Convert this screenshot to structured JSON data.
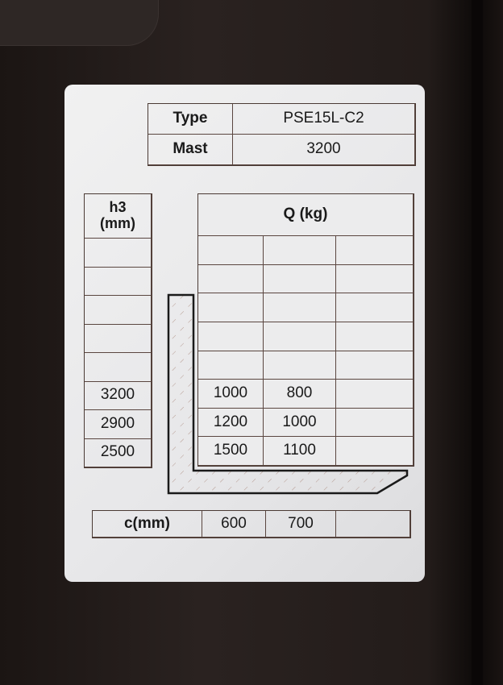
{
  "spec": {
    "type_label": "Type",
    "type_value": "PSE15L-C2",
    "mast_label": "Mast",
    "mast_value": "3200"
  },
  "h3": {
    "header_line1": "h3",
    "header_line2": "(mm)",
    "rows": [
      "",
      "",
      "",
      "",
      "",
      "3200",
      "2900",
      "2500"
    ]
  },
  "q": {
    "header": "Q (kg)",
    "rows": [
      [
        "",
        "",
        ""
      ],
      [
        "",
        "",
        ""
      ],
      [
        "",
        "",
        ""
      ],
      [
        "",
        "",
        ""
      ],
      [
        "",
        "",
        ""
      ],
      [
        "1000",
        "800",
        ""
      ],
      [
        "1200",
        "1000",
        ""
      ],
      [
        "1500",
        "1100",
        ""
      ]
    ]
  },
  "c": {
    "label": "c(mm)",
    "values": [
      "600",
      "700",
      ""
    ]
  }
}
